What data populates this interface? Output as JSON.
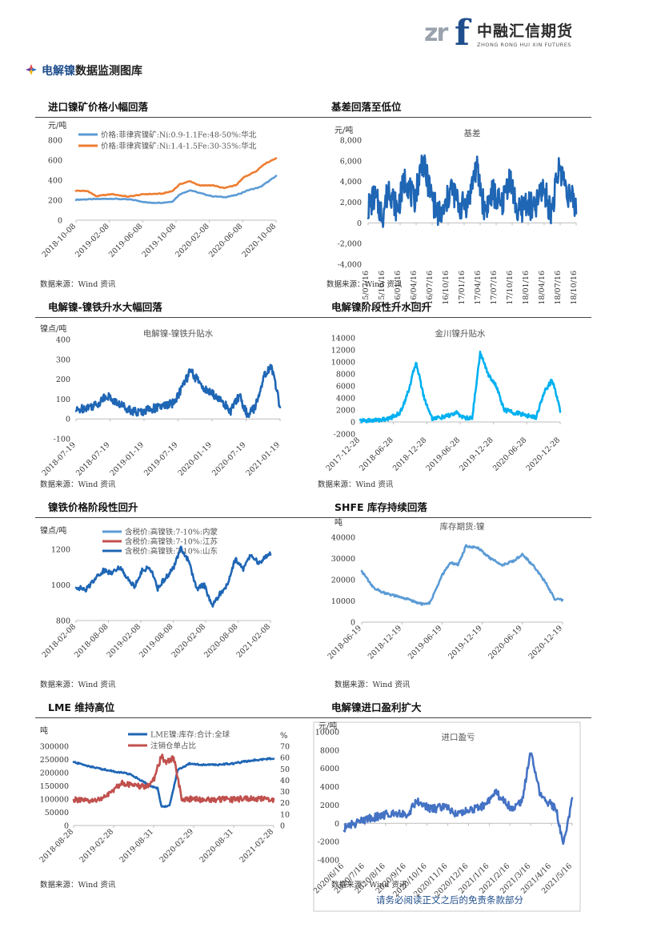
{
  "header": {
    "logo_zr": "zr",
    "logo_f": "f",
    "logo_cn": "中融汇信期货",
    "logo_en": "ZHONG RONG HUI XIN FUTURES"
  },
  "page_title": {
    "highlight": "电解镍",
    "rest": "数据监测图库"
  },
  "sections": [
    {
      "title": "进口镍矿价格小幅回落",
      "source": "数据来源：Wind 资讯"
    },
    {
      "title": "基差回落至低位",
      "source": "数据来源：Wind 资讯"
    },
    {
      "title": "电解镍-镍铁升水大幅回落",
      "source": "数据来源：Wind 资讯"
    },
    {
      "title": "电解镍阶段性升水回升",
      "source": "数据来源：Wind 资讯"
    },
    {
      "title": "镍铁价格阶段性回升",
      "source": "数据来源：Wind 资讯"
    },
    {
      "title": "SHFE 库存持续回落",
      "source": "数据来源：Wind 资讯"
    },
    {
      "title": "LME 维持高位",
      "source": "数据来源：Wind 资讯"
    },
    {
      "title": "电解镍进口盈利扩大",
      "source": "数据来源：Wind 资讯"
    }
  ],
  "footer": "请务必阅读正文之后的免责条款部分",
  "chart_data": [
    {
      "type": "line",
      "unit": "元/吨",
      "ylim": [
        0,
        800
      ],
      "yticks": [
        "0",
        "200",
        "400",
        "600",
        "800"
      ],
      "x_ticks": [
        "2018-10-08",
        "2019-02-08",
        "2019-06-08",
        "2019-10-08",
        "2020-02-08",
        "2020-06-08",
        "2020-10-08"
      ],
      "series": [
        {
          "name": "价格:菲律宾镍矿:Ni:0.9-1.1Fe:48-50%:华北",
          "color": "#5b9bd5",
          "x": [
            0,
            0.08,
            0.18,
            0.28,
            0.36,
            0.43,
            0.48,
            0.52,
            0.57,
            0.62,
            0.68,
            0.74,
            0.8,
            0.86,
            0.92,
            1
          ],
          "values": [
            205,
            210,
            215,
            205,
            175,
            175,
            185,
            260,
            300,
            270,
            240,
            230,
            250,
            300,
            330,
            440
          ]
        },
        {
          "name": "价格:菲律宾镍矿:Ni:1.4-1.5Fe:30-35%:华北",
          "color": "#ed7d31",
          "x": [
            0,
            0.06,
            0.1,
            0.18,
            0.26,
            0.34,
            0.43,
            0.48,
            0.52,
            0.57,
            0.62,
            0.68,
            0.74,
            0.8,
            0.84,
            0.9,
            0.94,
            1
          ],
          "values": [
            295,
            290,
            240,
            260,
            235,
            260,
            265,
            290,
            360,
            390,
            345,
            350,
            320,
            350,
            430,
            490,
            560,
            620
          ]
        }
      ]
    },
    {
      "type": "line",
      "title": "基差",
      "unit": "元/吨",
      "ylim": [
        -4000,
        8000
      ],
      "yticks": [
        "-4,000",
        "-2,000",
        "0",
        "2,000",
        "4,000",
        "6,000",
        "8,000"
      ],
      "x_ticks": [
        "15/07/16",
        "15/10/16",
        "16/01/16",
        "16/04/16",
        "16/07/16",
        "16/10/16",
        "17/01/16",
        "17/04/16",
        "17/07/16",
        "17/10/16",
        "18/01/16",
        "18/04/16",
        "18/07/16",
        "18/10/16"
      ],
      "series": [
        {
          "color": "#1f66b5",
          "x": [
            0,
            0.03,
            0.07,
            0.1,
            0.14,
            0.18,
            0.22,
            0.26,
            0.3,
            0.33,
            0.36,
            0.4,
            0.44,
            0.48,
            0.52,
            0.56,
            0.6,
            0.64,
            0.68,
            0.72,
            0.76,
            0.8,
            0.84,
            0.88,
            0.92,
            0.96,
            1
          ],
          "values": [
            1500,
            2500,
            800,
            3500,
            1200,
            4500,
            2000,
            6000,
            3000,
            1000,
            800,
            3500,
            1500,
            2000,
            5500,
            1200,
            3000,
            1500,
            4500,
            800,
            2000,
            1200,
            3500,
            1000,
            5500,
            3000,
            1500
          ]
        }
      ]
    },
    {
      "type": "line",
      "title": "电解镍-镍铁升贴水",
      "unit": "镍点/吨",
      "ylim": [
        -100,
        400
      ],
      "yticks": [
        "-100",
        "0",
        "100",
        "200",
        "300",
        "400"
      ],
      "x_ticks": [
        "2018-07-19",
        "2018-07-19",
        "2019-01-19",
        "2019-07-19",
        "2020-01-19",
        "2020-07-19",
        "2021-01-19"
      ],
      "series": [
        {
          "color": "#1f66b5",
          "x": [
            0,
            0.05,
            0.1,
            0.15,
            0.2,
            0.24,
            0.3,
            0.36,
            0.42,
            0.48,
            0.52,
            0.56,
            0.6,
            0.64,
            0.68,
            0.72,
            0.76,
            0.8,
            0.84,
            0.88,
            0.92,
            0.96,
            1
          ],
          "values": [
            40,
            60,
            70,
            120,
            80,
            60,
            30,
            50,
            60,
            80,
            160,
            240,
            190,
            140,
            120,
            80,
            40,
            120,
            20,
            60,
            220,
            260,
            60
          ]
        }
      ]
    },
    {
      "type": "line",
      "title": "金川镍升贴水",
      "ylim": [
        -2000,
        14000
      ],
      "yticks": [
        "-2000",
        "0",
        "2000",
        "4000",
        "6000",
        "8000",
        "10000",
        "12000",
        "14000"
      ],
      "x_ticks": [
        "2017-12-28",
        "2018-06-28",
        "2018-12-28",
        "2019-06-28",
        "2019-12-28",
        "2020-06-28",
        "2020-12-28"
      ],
      "series": [
        {
          "color": "#00b0f0",
          "x": [
            0,
            0.08,
            0.14,
            0.2,
            0.24,
            0.28,
            0.32,
            0.36,
            0.42,
            0.48,
            0.52,
            0.56,
            0.6,
            0.64,
            0.68,
            0.72,
            0.78,
            0.84,
            0.88,
            0.92,
            0.96,
            1
          ],
          "values": [
            200,
            300,
            500,
            1500,
            5000,
            10000,
            4000,
            600,
            800,
            1500,
            700,
            600,
            11500,
            8000,
            6000,
            2000,
            1500,
            1000,
            800,
            5000,
            7000,
            2000
          ]
        }
      ]
    },
    {
      "type": "line",
      "unit": "镍点/吨",
      "ylim": [
        800,
        1200
      ],
      "yticks": [
        "800",
        "1000",
        "1200"
      ],
      "x_ticks": [
        "2018-02-08",
        "2018-08-08",
        "2019-02-08",
        "2019-08-08",
        "2020-02-08",
        "2020-08-08",
        "2021-02-08"
      ],
      "series": [
        {
          "name": "含税价:高镍铁:7-10%:内蒙",
          "color": "#5b9bd5"
        },
        {
          "name": "含税价:高镍铁:7-10%:江苏",
          "color": "#c0504d"
        },
        {
          "name": "含税价:高镍铁:7-10%:山东",
          "color": "#1f66b5",
          "x": [
            0,
            0.05,
            0.1,
            0.14,
            0.18,
            0.22,
            0.26,
            0.3,
            0.34,
            0.38,
            0.42,
            0.46,
            0.5,
            0.54,
            0.58,
            0.62,
            0.66,
            0.7,
            0.74,
            0.78,
            0.82,
            0.86,
            0.9,
            0.94,
            1
          ],
          "values": [
            990,
            970,
            1040,
            1080,
            1070,
            1100,
            1050,
            990,
            1080,
            1100,
            980,
            1040,
            1090,
            1210,
            1130,
            980,
            1000,
            880,
            950,
            1000,
            1150,
            1090,
            1170,
            1120,
            1180
          ]
        }
      ]
    },
    {
      "type": "line",
      "title": "库存期货:镍",
      "unit": "吨",
      "ylim": [
        0,
        40000
      ],
      "yticks": [
        "0",
        "10000",
        "20000",
        "30000",
        "40000"
      ],
      "x_ticks": [
        "2018-06-19",
        "2018-12-19",
        "2019-06-19",
        "2019-12-19",
        "2020-06-19",
        "2020-12-19"
      ],
      "series": [
        {
          "color": "#5b9bd5",
          "x": [
            0,
            0.06,
            0.12,
            0.18,
            0.24,
            0.3,
            0.34,
            0.4,
            0.44,
            0.48,
            0.52,
            0.58,
            0.64,
            0.7,
            0.76,
            0.8,
            0.86,
            0.92,
            0.96,
            1
          ],
          "values": [
            24000,
            16000,
            13500,
            12000,
            10500,
            8500,
            9000,
            22000,
            28000,
            27000,
            36000,
            35000,
            30000,
            27000,
            29000,
            32000,
            26000,
            18000,
            11000,
            10500
          ]
        }
      ]
    },
    {
      "type": "line",
      "unit_left": "吨",
      "unit_right": "%",
      "ylim": [
        0,
        300000
      ],
      "y2lim": [
        0,
        70
      ],
      "yticks": [
        "0",
        "50000",
        "100000",
        "150000",
        "200000",
        "250000",
        "300000"
      ],
      "y2ticks": [
        "0",
        "10",
        "20",
        "30",
        "40",
        "50",
        "60",
        "70"
      ],
      "x_ticks": [
        "2018-08-28",
        "2019-02-28",
        "2019-08-31",
        "2020-02-29",
        "2020-08-31",
        "2021-02-28"
      ],
      "series": [
        {
          "name": "LME镍:库存:合计:全球",
          "color": "#1f66b5",
          "x": [
            0,
            0.1,
            0.2,
            0.28,
            0.34,
            0.38,
            0.42,
            0.44,
            0.48,
            0.52,
            0.58,
            0.64,
            0.72,
            0.8,
            0.88,
            0.94,
            1
          ],
          "values": [
            240000,
            220000,
            205000,
            195000,
            170000,
            150000,
            140000,
            70000,
            75000,
            210000,
            235000,
            230000,
            230000,
            235000,
            245000,
            250000,
            255000
          ]
        },
        {
          "name": "注销仓单占比",
          "color": "#c0504d",
          "x": [
            0,
            0.08,
            0.16,
            0.24,
            0.3,
            0.36,
            0.4,
            0.44,
            0.46,
            0.5,
            0.54,
            0.6,
            0.7,
            0.8,
            0.9,
            1
          ],
          "values": [
            23,
            21,
            25,
            38,
            35,
            34,
            40,
            62,
            55,
            60,
            24,
            23,
            23,
            23,
            24,
            23
          ]
        }
      ]
    },
    {
      "type": "line",
      "title": "进口盈亏",
      "unit": "元/吨",
      "ylim": [
        -4000,
        10000
      ],
      "yticks": [
        "-4000",
        "-2000",
        "0",
        "2000",
        "4000",
        "6000",
        "8000",
        "10000"
      ],
      "x_ticks": [
        "2020/6/16",
        "2020/7/16",
        "2020/8/16",
        "2020/9/16",
        "2020/10/16",
        "2020/11/16",
        "2020/12/16",
        "2021/1/16",
        "2021/2/16",
        "2021/3/16",
        "2021/4/16",
        "2021/5/16"
      ],
      "series": [
        {
          "color": "#4472c4",
          "x": [
            0,
            0.05,
            0.1,
            0.16,
            0.22,
            0.28,
            0.32,
            0.38,
            0.44,
            0.5,
            0.56,
            0.62,
            0.66,
            0.7,
            0.74,
            0.78,
            0.82,
            0.86,
            0.9,
            0.93,
            0.96,
            1
          ],
          "values": [
            -500,
            0,
            500,
            800,
            1200,
            1000,
            2500,
            1500,
            1800,
            1000,
            1500,
            2000,
            3500,
            2500,
            1500,
            2500,
            8000,
            3000,
            2200,
            1500,
            -2500,
            2500
          ]
        }
      ]
    }
  ]
}
